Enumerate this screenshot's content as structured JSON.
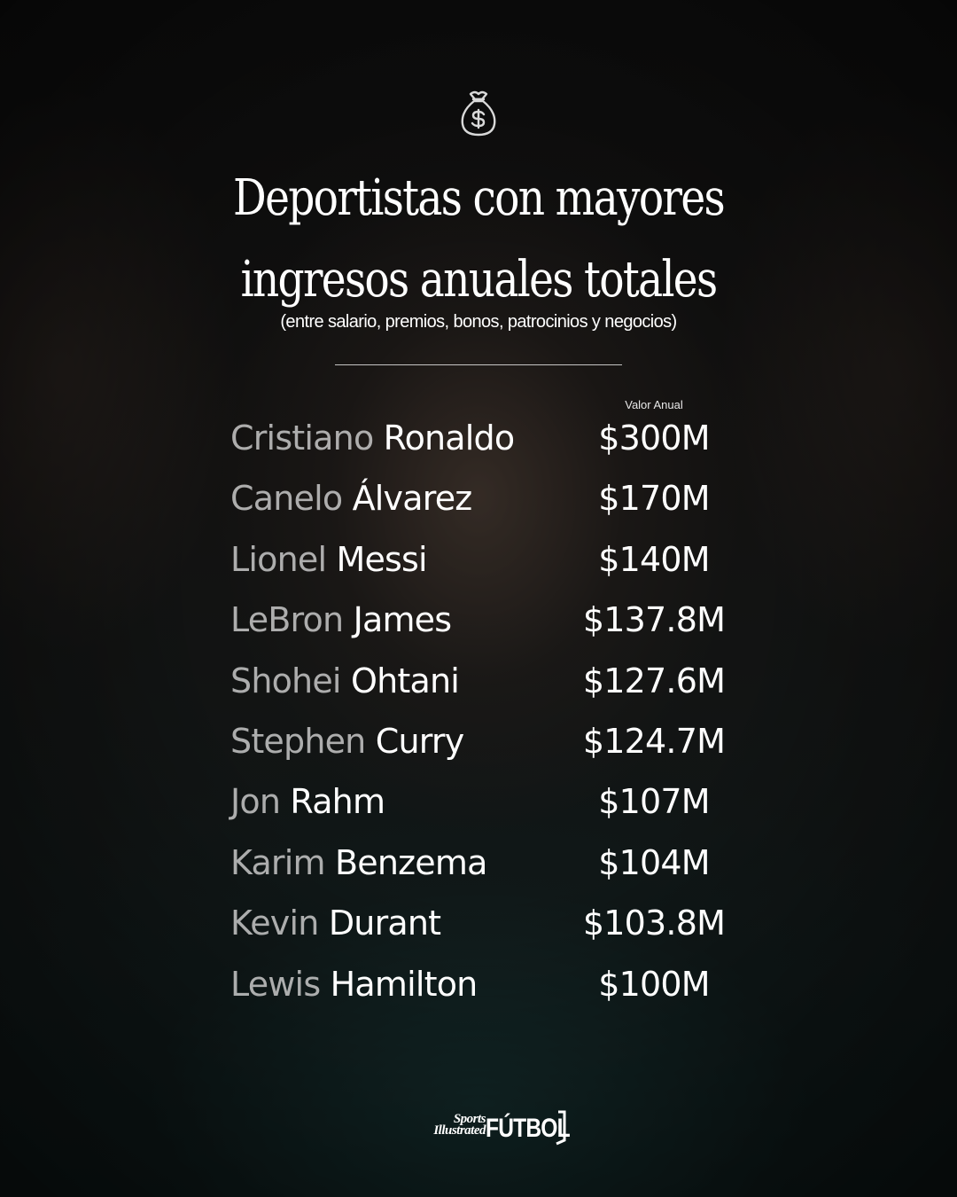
{
  "header": {
    "icon": "money-bag-icon",
    "title_line1": "Deportistas con mayores",
    "title_line2": "ingresos anuales totales",
    "subtitle": "(entre salario, premios, bonos, patrocinios y negocios)"
  },
  "table": {
    "value_header": "Valor Anual",
    "rows": [
      {
        "first": "Cristiano",
        "last": "Ronaldo",
        "value": "$300M"
      },
      {
        "first": "Canelo",
        "last": "Álvarez",
        "value": "$170M"
      },
      {
        "first": "Lionel",
        "last": "Messi",
        "value": "$140M"
      },
      {
        "first": "LeBron",
        "last": "James",
        "value": "$137.8M"
      },
      {
        "first": "Shohei",
        "last": "Ohtani",
        "value": "$127.6M"
      },
      {
        "first": "Stephen",
        "last": "Curry",
        "value": "$124.7M"
      },
      {
        "first": "Jon",
        "last": "Rahm",
        "value": "$107M"
      },
      {
        "first": "Karim",
        "last": "Benzema",
        "value": "$104M"
      },
      {
        "first": "Kevin",
        "last": "Durant",
        "value": "$103.8M"
      },
      {
        "first": "Lewis",
        "last": "Hamilton",
        "value": "$100M"
      }
    ]
  },
  "footer": {
    "brand_line1": "Sports",
    "brand_line2": "Illustrated",
    "brand_line3": "FÚTBOL"
  }
}
